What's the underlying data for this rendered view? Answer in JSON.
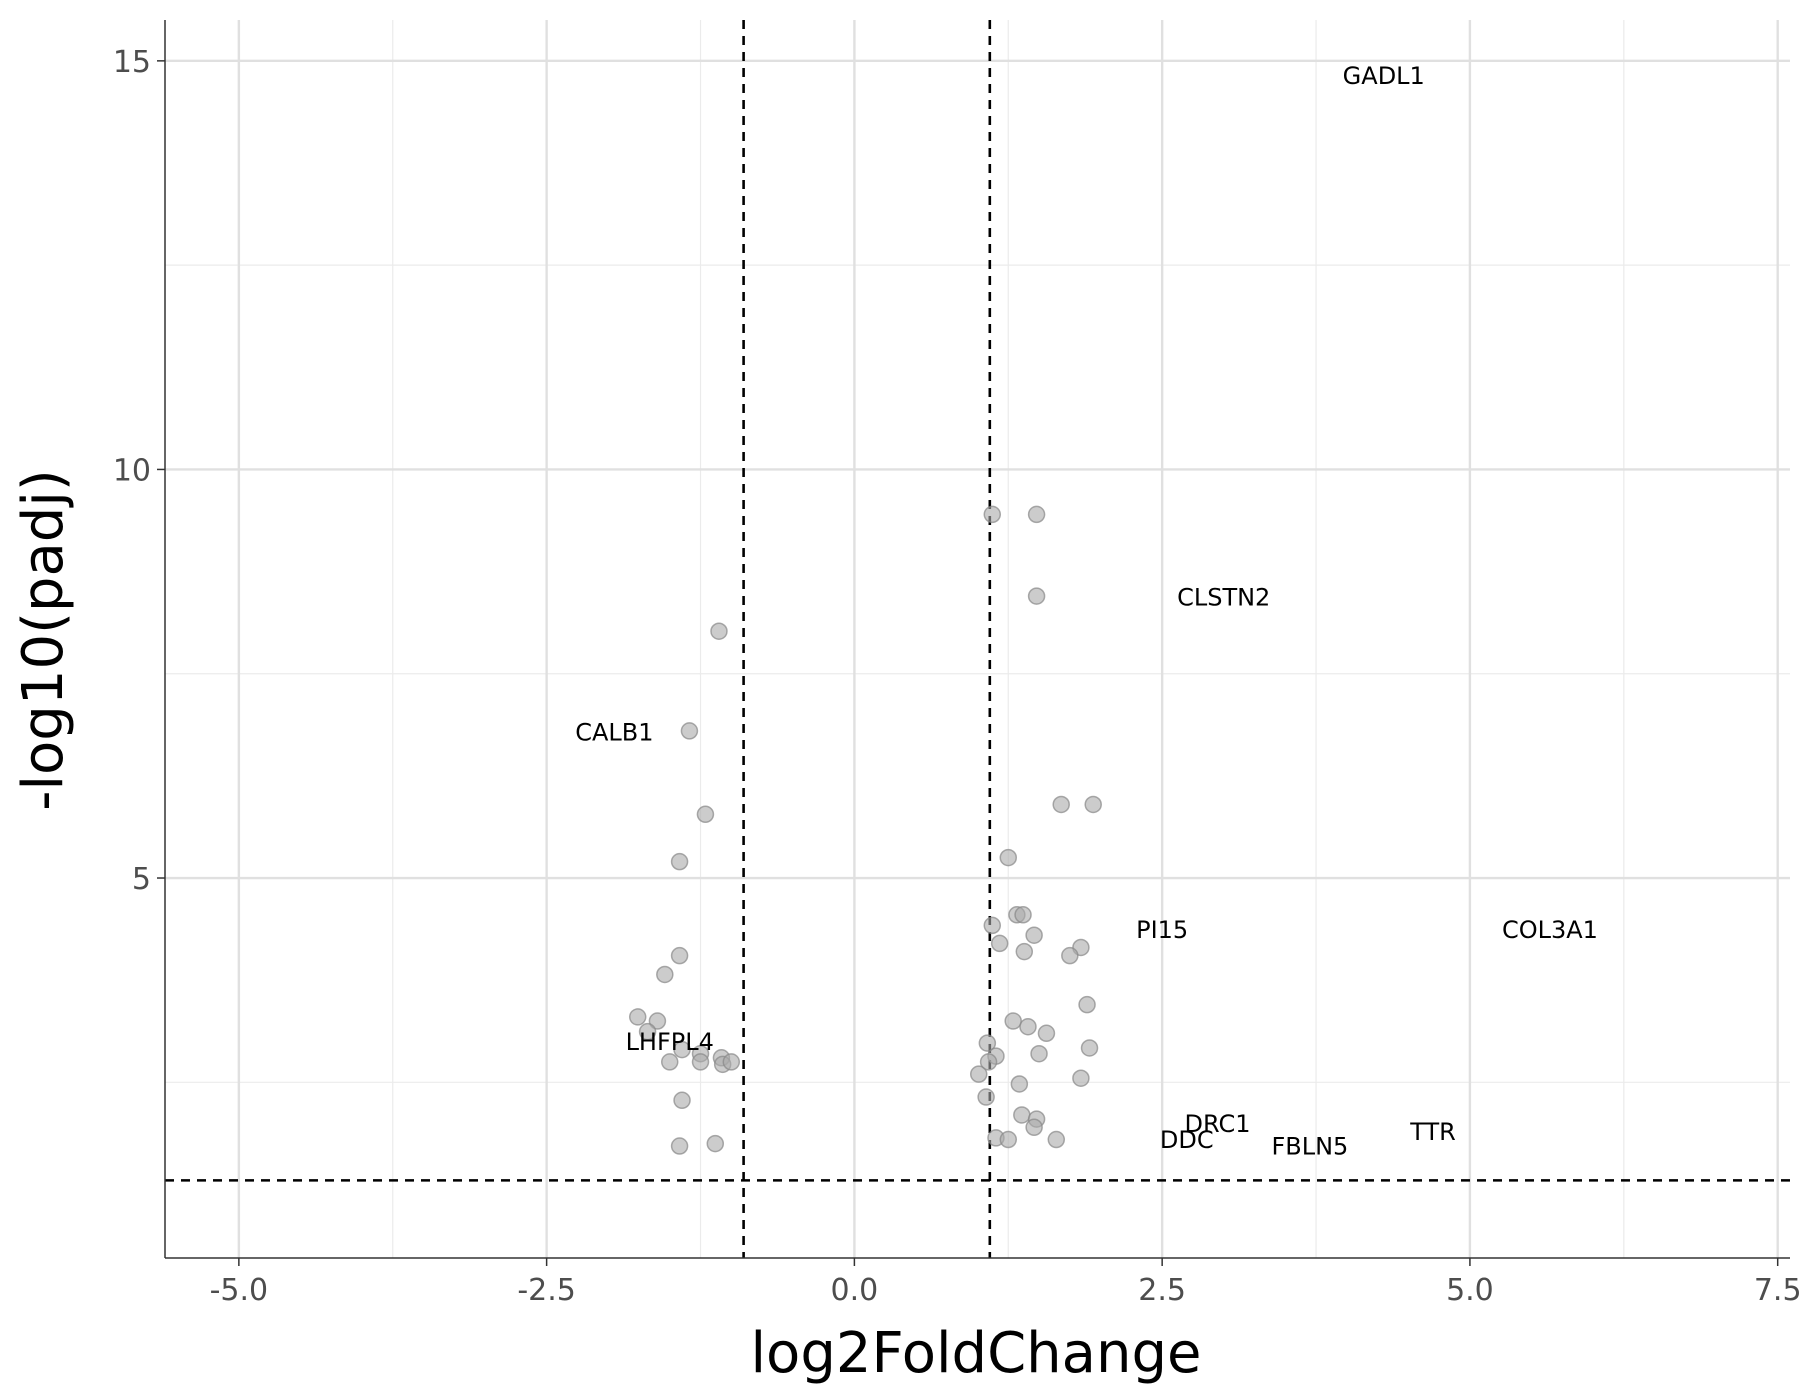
{
  "chart_data": {
    "type": "scatter",
    "title": "",
    "xlabel": "log2FoldChange",
    "ylabel": "-log10(padj)",
    "xlim": [
      -5.6,
      7.6
    ],
    "ylim": [
      0.35,
      15.5
    ],
    "x_ticks": [
      -5.0,
      -2.5,
      0.0,
      2.5,
      5.0,
      7.5
    ],
    "x_tick_labels": [
      "-5.0",
      "-2.5",
      "0.0",
      "2.5",
      "5.0",
      "7.5"
    ],
    "y_ticks": [
      5,
      10,
      15
    ],
    "y_tick_labels": [
      "5",
      "10",
      "15"
    ],
    "grid": true,
    "legend": "none",
    "thresholds": {
      "x": [
        -0.9,
        1.1
      ],
      "y": 1.3
    },
    "point_color": "#aaaaaa",
    "points": [
      {
        "x": 1.12,
        "y": 9.45
      },
      {
        "x": 1.48,
        "y": 9.45
      },
      {
        "x": 1.48,
        "y": 8.45
      },
      {
        "x": -1.1,
        "y": 8.02
      },
      {
        "x": -1.34,
        "y": 6.8
      },
      {
        "x": -1.21,
        "y": 5.78
      },
      {
        "x": -1.42,
        "y": 5.2
      },
      {
        "x": 1.68,
        "y": 5.9
      },
      {
        "x": 1.94,
        "y": 5.9
      },
      {
        "x": 1.25,
        "y": 5.25
      },
      {
        "x": 1.32,
        "y": 4.55
      },
      {
        "x": 1.37,
        "y": 4.55
      },
      {
        "x": 1.12,
        "y": 4.42
      },
      {
        "x": 1.46,
        "y": 4.3
      },
      {
        "x": 1.18,
        "y": 4.2
      },
      {
        "x": 1.38,
        "y": 4.1
      },
      {
        "x": 1.84,
        "y": 4.15
      },
      {
        "x": 1.75,
        "y": 4.05
      },
      {
        "x": -1.42,
        "y": 4.05
      },
      {
        "x": -1.54,
        "y": 3.82
      },
      {
        "x": 1.89,
        "y": 3.45
      },
      {
        "x": -1.76,
        "y": 3.3
      },
      {
        "x": -1.6,
        "y": 3.25
      },
      {
        "x": -1.68,
        "y": 3.12
      },
      {
        "x": 1.29,
        "y": 3.25
      },
      {
        "x": 1.41,
        "y": 3.18
      },
      {
        "x": 1.56,
        "y": 3.1
      },
      {
        "x": 1.08,
        "y": 2.98
      },
      {
        "x": 1.91,
        "y": 2.92
      },
      {
        "x": 1.5,
        "y": 2.85
      },
      {
        "x": 1.15,
        "y": 2.82
      },
      {
        "x": -1.4,
        "y": 2.9
      },
      {
        "x": -1.25,
        "y": 2.85
      },
      {
        "x": -1.08,
        "y": 2.8
      },
      {
        "x": -1.5,
        "y": 2.75
      },
      {
        "x": -1.25,
        "y": 2.75
      },
      {
        "x": -1.07,
        "y": 2.72
      },
      {
        "x": -1.0,
        "y": 2.75
      },
      {
        "x": 1.09,
        "y": 2.75
      },
      {
        "x": 1.01,
        "y": 2.6
      },
      {
        "x": 1.84,
        "y": 2.55
      },
      {
        "x": 1.34,
        "y": 2.48
      },
      {
        "x": -1.4,
        "y": 2.28
      },
      {
        "x": 1.07,
        "y": 2.32
      },
      {
        "x": 1.36,
        "y": 2.1
      },
      {
        "x": 1.48,
        "y": 2.05
      },
      {
        "x": 1.46,
        "y": 1.95
      },
      {
        "x": 1.15,
        "y": 1.82
      },
      {
        "x": 1.25,
        "y": 1.8
      },
      {
        "x": 1.64,
        "y": 1.8
      },
      {
        "x": -1.42,
        "y": 1.72
      },
      {
        "x": -1.13,
        "y": 1.75
      }
    ],
    "labels": [
      {
        "text": "GADL1",
        "x": 4.3,
        "y": 14.8
      },
      {
        "text": "CLSTN2",
        "x": 3.0,
        "y": 8.42
      },
      {
        "text": "CALB1",
        "x": -1.95,
        "y": 6.77
      },
      {
        "text": "PI15",
        "x": 2.5,
        "y": 4.35
      },
      {
        "text": "COL3A1",
        "x": 5.65,
        "y": 4.35
      },
      {
        "text": "LHFPL4",
        "x": -1.5,
        "y": 2.98
      },
      {
        "text": "DRC1",
        "x": 2.95,
        "y": 1.98
      },
      {
        "text": "TTR",
        "x": 4.7,
        "y": 1.88
      },
      {
        "text": "DDC",
        "x": 2.7,
        "y": 1.78
      },
      {
        "text": "FBLN5",
        "x": 3.7,
        "y": 1.7
      }
    ]
  }
}
